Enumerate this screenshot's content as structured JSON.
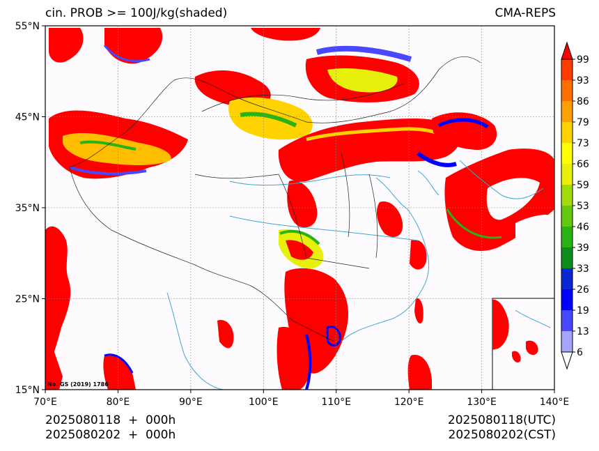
{
  "header": {
    "title": "cin. PROB >= 100J/kg(shaded)",
    "model": "CMA-REPS"
  },
  "map": {
    "projection": "lat-lon",
    "lon_range": [
      70,
      140
    ],
    "lat_range": [
      15,
      55
    ],
    "lon_ticks": [
      "70°E",
      "80°E",
      "90°E",
      "100°E",
      "110°E",
      "120°E",
      "130°E",
      "140°E"
    ],
    "lat_ticks": [
      "15°N",
      "25°N",
      "35°N",
      "45°N",
      "55°N"
    ],
    "grid": true,
    "review_number": "No. GS (2019) 1786",
    "inset": "South China Sea",
    "field": "cin probability (%) >= 100 J/kg"
  },
  "colorbar": {
    "levels": [
      "6",
      "13",
      "19",
      "26",
      "33",
      "39",
      "46",
      "53",
      "59",
      "66",
      "73",
      "79",
      "86",
      "93",
      "99"
    ],
    "colors": [
      "#ffffff",
      "#a5a5ff",
      "#4848ff",
      "#0000ff",
      "#0a28d2",
      "#0f8c1e",
      "#28b414",
      "#64c80f",
      "#a0dc0a",
      "#e6f00a",
      "#ffff00",
      "#ffd200",
      "#ffa000",
      "#ff6e00",
      "#ff3c00",
      "#ff0000"
    ],
    "extend": "both"
  },
  "footer": {
    "init_local_line": "2025080118  +  000h",
    "valid_local_line": "2025080202  +  000h",
    "utc": "2025080118(UTC)",
    "cst": "2025080202(CST)"
  }
}
